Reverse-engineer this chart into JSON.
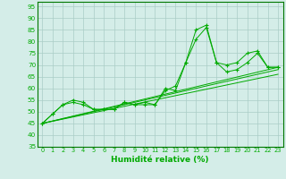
{
  "xlabel": "Humidité relative (%)",
  "xlim": [
    -0.5,
    23.5
  ],
  "ylim": [
    35,
    97
  ],
  "yticks": [
    35,
    40,
    45,
    50,
    55,
    60,
    65,
    70,
    75,
    80,
    85,
    90,
    95
  ],
  "xticks": [
    0,
    1,
    2,
    3,
    4,
    5,
    6,
    7,
    8,
    9,
    10,
    11,
    12,
    13,
    14,
    15,
    16,
    17,
    18,
    19,
    20,
    21,
    22,
    23
  ],
  "background_color": "#d4ede8",
  "grid_color": "#aaccc6",
  "line_color": "#00aa00",
  "tick_color": "#00aa00",
  "spine_color": "#007700",
  "line1_x": [
    0,
    1,
    2,
    3,
    4,
    5,
    6,
    7,
    8,
    9,
    10,
    11,
    12,
    13,
    14,
    15,
    16,
    17,
    18,
    19,
    20,
    21,
    22,
    23
  ],
  "line1_y": [
    45,
    49,
    53,
    55,
    54,
    51,
    51,
    51,
    54,
    53,
    53,
    53,
    60,
    59,
    71,
    85,
    87,
    71,
    70,
    71,
    75,
    76,
    69,
    69
  ],
  "line2_x": [
    0,
    1,
    2,
    3,
    4,
    5,
    6,
    7,
    8,
    9,
    10,
    11,
    12,
    13,
    14,
    15,
    16,
    17,
    18,
    19,
    20,
    21,
    22,
    23
  ],
  "line2_y": [
    45,
    49,
    53,
    54,
    53,
    51,
    51,
    51,
    54,
    53,
    54,
    53,
    59,
    61,
    71,
    81,
    86,
    71,
    67,
    68,
    71,
    75,
    69,
    69
  ],
  "line3_x": [
    0,
    23
  ],
  "line3_y": [
    45,
    69
  ],
  "line4_x": [
    0,
    23
  ],
  "line4_y": [
    45,
    68
  ],
  "line5_x": [
    0,
    23
  ],
  "line5_y": [
    45,
    66
  ]
}
